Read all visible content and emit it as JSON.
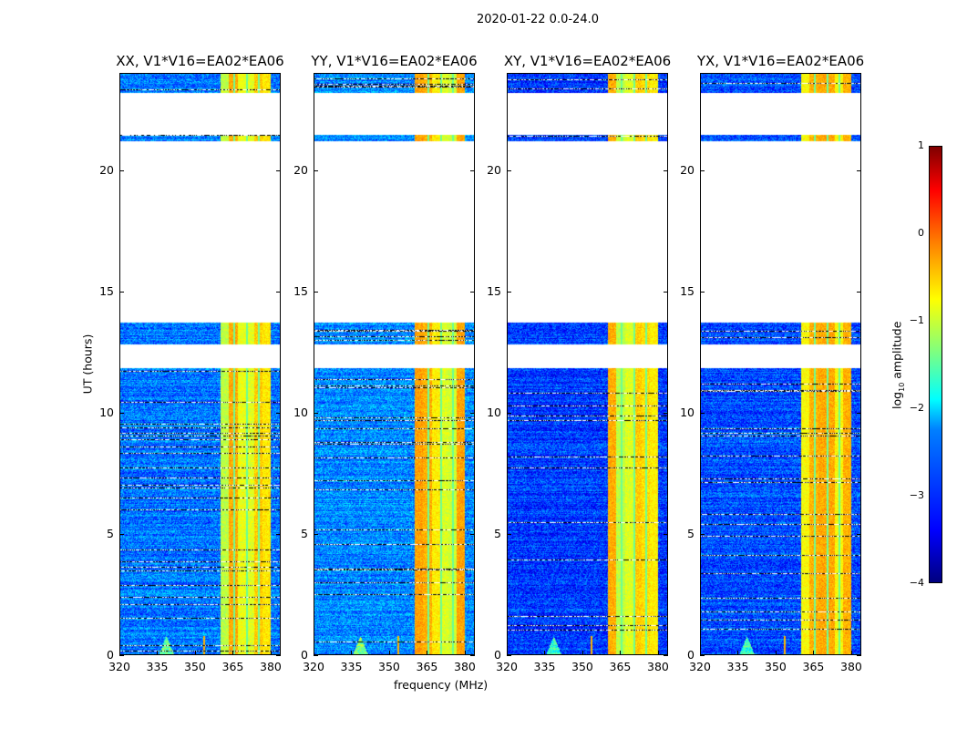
{
  "suptitle": "2020-01-22 0.0-24.0",
  "chart_data": {
    "type": "heatmap",
    "title": "2020-01-22 0.0-24.0",
    "xlabel": "frequency (MHz)",
    "ylabel": "UT (hours)",
    "xlim": [
      320,
      384
    ],
    "ylim": [
      0,
      24
    ],
    "xticks": [
      "320",
      "335",
      "350",
      "365",
      "380"
    ],
    "yticks": [
      "0",
      "5",
      "10",
      "15",
      "20"
    ],
    "panels": [
      {
        "title": "XX, V1*V16=EA02*EA06",
        "background": -2.8
      },
      {
        "title": "YY, V1*V16=EA02*EA06",
        "background": -2.7
      },
      {
        "title": "XY, V1*V16=EA02*EA06",
        "background": -3.1
      },
      {
        "title": "YX, V1*V16=EA02*EA06",
        "background": -3.0
      }
    ],
    "data_time_ranges_hours": [
      [
        0,
        11.85
      ],
      [
        12.83,
        13.73
      ],
      [
        21.2,
        21.45
      ],
      [
        23.2,
        24
      ]
    ],
    "bright_band_mhz": [
      360,
      380
    ],
    "bright_band_level": -0.8,
    "rfi_line_mhz": [
      338.5,
      353.5
    ],
    "colorbar": {
      "label": "log10 amplitude",
      "label_main": "log",
      "label_sub": "10",
      "label_rest": " amplitude",
      "range": [
        -4,
        1
      ],
      "ticks": [
        "1",
        "0",
        "−1",
        "−2",
        "−3",
        "−4"
      ]
    }
  }
}
